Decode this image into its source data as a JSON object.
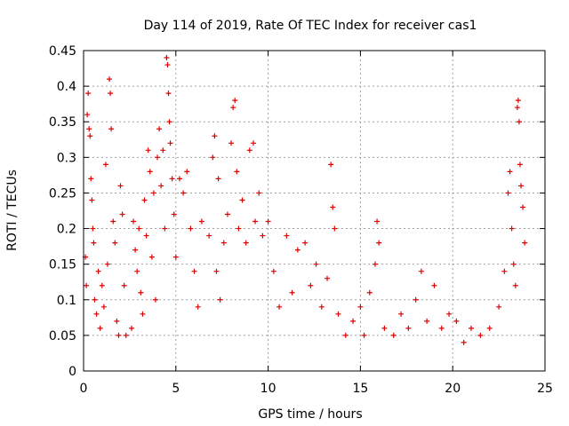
{
  "chart_data": {
    "type": "scatter",
    "title": "Day 114 of 2019, Rate Of TEC Index for receiver cas1",
    "xlabel": "GPS time / hours",
    "ylabel": "ROTI / TECUs",
    "xlim": [
      0,
      25
    ],
    "ylim": [
      0,
      0.45
    ],
    "xticks": [
      0,
      5,
      10,
      15,
      20,
      25
    ],
    "xtick_labels": [
      "0",
      "5",
      "10",
      "15",
      "20",
      "25"
    ],
    "yticks": [
      0,
      0.05,
      0.1,
      0.15,
      0.2,
      0.25,
      0.3,
      0.35,
      0.4,
      0.45
    ],
    "ytick_labels": [
      "0",
      "0.05",
      "0.1",
      "0.15",
      "0.2",
      "0.25",
      "0.3",
      "0.35",
      "0.4",
      "0.45"
    ],
    "grid": true,
    "marker": "+",
    "color": "#e00000",
    "series": [
      {
        "name": "cas1",
        "points": [
          [
            0.1,
            0.16
          ],
          [
            0.15,
            0.12
          ],
          [
            0.2,
            0.36
          ],
          [
            0.25,
            0.39
          ],
          [
            0.3,
            0.34
          ],
          [
            0.35,
            0.33
          ],
          [
            0.4,
            0.27
          ],
          [
            0.45,
            0.24
          ],
          [
            0.5,
            0.2
          ],
          [
            0.55,
            0.18
          ],
          [
            0.6,
            0.1
          ],
          [
            0.7,
            0.08
          ],
          [
            0.8,
            0.14
          ],
          [
            0.9,
            0.06
          ],
          [
            1.0,
            0.12
          ],
          [
            1.1,
            0.09
          ],
          [
            1.2,
            0.29
          ],
          [
            1.3,
            0.15
          ],
          [
            1.4,
            0.41
          ],
          [
            1.45,
            0.39
          ],
          [
            1.5,
            0.34
          ],
          [
            1.6,
            0.21
          ],
          [
            1.7,
            0.18
          ],
          [
            1.8,
            0.07
          ],
          [
            1.9,
            0.05
          ],
          [
            2.0,
            0.26
          ],
          [
            2.1,
            0.22
          ],
          [
            2.2,
            0.12
          ],
          [
            2.3,
            0.05
          ],
          [
            2.6,
            0.06
          ],
          [
            2.7,
            0.21
          ],
          [
            2.8,
            0.17
          ],
          [
            2.9,
            0.14
          ],
          [
            3.0,
            0.2
          ],
          [
            3.1,
            0.11
          ],
          [
            3.2,
            0.08
          ],
          [
            3.3,
            0.24
          ],
          [
            3.4,
            0.19
          ],
          [
            3.5,
            0.31
          ],
          [
            3.6,
            0.28
          ],
          [
            3.7,
            0.16
          ],
          [
            3.8,
            0.25
          ],
          [
            3.9,
            0.1
          ],
          [
            4.0,
            0.3
          ],
          [
            4.1,
            0.34
          ],
          [
            4.2,
            0.26
          ],
          [
            4.3,
            0.31
          ],
          [
            4.4,
            0.2
          ],
          [
            4.5,
            0.44
          ],
          [
            4.55,
            0.43
          ],
          [
            4.6,
            0.39
          ],
          [
            4.65,
            0.35
          ],
          [
            4.7,
            0.32
          ],
          [
            4.8,
            0.27
          ],
          [
            4.9,
            0.22
          ],
          [
            5.0,
            0.16
          ],
          [
            5.2,
            0.27
          ],
          [
            5.4,
            0.25
          ],
          [
            5.6,
            0.28
          ],
          [
            5.8,
            0.2
          ],
          [
            6.0,
            0.14
          ],
          [
            6.2,
            0.09
          ],
          [
            6.4,
            0.21
          ],
          [
            6.8,
            0.19
          ],
          [
            7.0,
            0.3
          ],
          [
            7.1,
            0.33
          ],
          [
            7.2,
            0.14
          ],
          [
            7.3,
            0.27
          ],
          [
            7.4,
            0.1
          ],
          [
            7.6,
            0.18
          ],
          [
            7.8,
            0.22
          ],
          [
            8.0,
            0.32
          ],
          [
            8.1,
            0.37
          ],
          [
            8.2,
            0.38
          ],
          [
            8.3,
            0.28
          ],
          [
            8.4,
            0.2
          ],
          [
            8.6,
            0.24
          ],
          [
            8.8,
            0.18
          ],
          [
            9.0,
            0.31
          ],
          [
            9.2,
            0.32
          ],
          [
            9.3,
            0.21
          ],
          [
            9.5,
            0.25
          ],
          [
            9.7,
            0.19
          ],
          [
            10.0,
            0.21
          ],
          [
            10.3,
            0.14
          ],
          [
            10.6,
            0.09
          ],
          [
            11.0,
            0.19
          ],
          [
            11.3,
            0.11
          ],
          [
            11.6,
            0.17
          ],
          [
            12.0,
            0.18
          ],
          [
            12.3,
            0.12
          ],
          [
            12.6,
            0.15
          ],
          [
            12.9,
            0.09
          ],
          [
            13.2,
            0.13
          ],
          [
            13.4,
            0.29
          ],
          [
            13.5,
            0.23
          ],
          [
            13.6,
            0.2
          ],
          [
            13.8,
            0.08
          ],
          [
            14.2,
            0.05
          ],
          [
            14.6,
            0.07
          ],
          [
            15.0,
            0.09
          ],
          [
            15.2,
            0.05
          ],
          [
            15.5,
            0.11
          ],
          [
            15.8,
            0.15
          ],
          [
            15.9,
            0.21
          ],
          [
            16.0,
            0.18
          ],
          [
            16.3,
            0.06
          ],
          [
            16.8,
            0.05
          ],
          [
            17.2,
            0.08
          ],
          [
            17.6,
            0.06
          ],
          [
            18.0,
            0.1
          ],
          [
            18.3,
            0.14
          ],
          [
            18.6,
            0.07
          ],
          [
            19.0,
            0.12
          ],
          [
            19.4,
            0.06
          ],
          [
            19.8,
            0.08
          ],
          [
            20.2,
            0.07
          ],
          [
            20.6,
            0.04
          ],
          [
            21.0,
            0.06
          ],
          [
            21.5,
            0.05
          ],
          [
            22.0,
            0.06
          ],
          [
            22.5,
            0.09
          ],
          [
            22.8,
            0.14
          ],
          [
            23.0,
            0.25
          ],
          [
            23.1,
            0.28
          ],
          [
            23.2,
            0.2
          ],
          [
            23.3,
            0.15
          ],
          [
            23.4,
            0.12
          ],
          [
            23.5,
            0.37
          ],
          [
            23.55,
            0.38
          ],
          [
            23.6,
            0.35
          ],
          [
            23.65,
            0.29
          ],
          [
            23.7,
            0.26
          ],
          [
            23.8,
            0.23
          ],
          [
            23.9,
            0.18
          ]
        ]
      }
    ]
  }
}
